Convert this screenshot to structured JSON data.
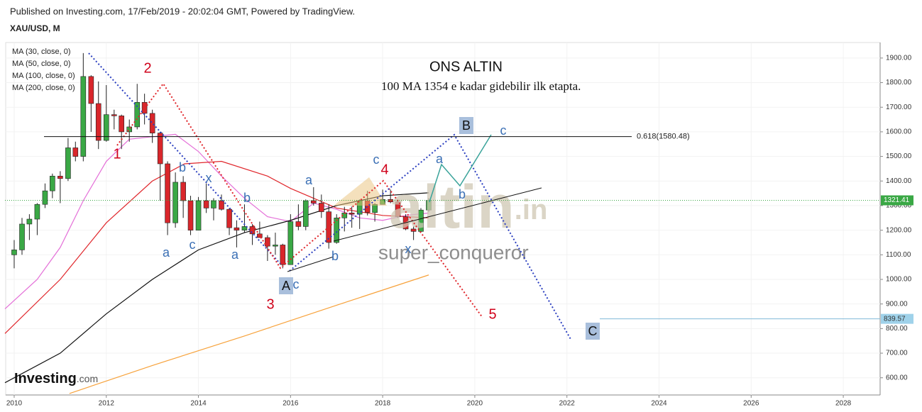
{
  "header": {
    "published": "Published on Investing.com, 17/Feb/2019 - 20:02:04 GMT, Powered by TradingView.",
    "symbol": "XAU/USD, M",
    "brand": "Investing",
    "brand_suffix": ".com"
  },
  "chart_data": {
    "type": "candlestick",
    "title": "ONS ALTIN",
    "subtitle": "100 MA 1354 e kadar gidebilir ilk etapta.",
    "watermark": "altin",
    "watermark_suffix": ".in",
    "author": "super_conqueror",
    "up_color": "#3aa845",
    "down_color": "#d9262b",
    "x": [
      2010.0,
      2010.17,
      2010.33,
      2010.5,
      2010.67,
      2010.83,
      2011.0,
      2011.17,
      2011.33,
      2011.5,
      2011.67,
      2011.83,
      2012.0,
      2012.17,
      2012.33,
      2012.5,
      2012.67,
      2012.83,
      2013.0,
      2013.17,
      2013.33,
      2013.5,
      2013.67,
      2013.83,
      2014.0,
      2014.17,
      2014.33,
      2014.5,
      2014.67,
      2014.83,
      2015.0,
      2015.17,
      2015.33,
      2015.5,
      2015.67,
      2015.83,
      2016.0,
      2016.17,
      2016.33,
      2016.5,
      2016.67,
      2016.83,
      2017.0,
      2017.17,
      2017.33,
      2017.5,
      2017.67,
      2017.83,
      2018.0,
      2018.17,
      2018.33,
      2018.5,
      2018.67,
      2018.83,
      2019.0
    ],
    "open": [
      1100,
      1120,
      1225,
      1245,
      1305,
      1360,
      1420,
      1410,
      1535,
      1500,
      1825,
      1715,
      1565,
      1670,
      1665,
      1600,
      1620,
      1720,
      1675,
      1595,
      1470,
      1230,
      1395,
      1320,
      1200,
      1320,
      1290,
      1320,
      1285,
      1210,
      1200,
      1215,
      1185,
      1170,
      1135,
      1140,
      1060,
      1235,
      1215,
      1320,
      1310,
      1275,
      1150,
      1250,
      1270,
      1265,
      1320,
      1272,
      1305,
      1325,
      1315,
      1255,
      1205,
      1195,
      1282
    ],
    "high": [
      1160,
      1250,
      1265,
      1310,
      1390,
      1430,
      1440,
      1575,
      1560,
      1920,
      1830,
      1805,
      1790,
      1690,
      1670,
      1650,
      1795,
      1755,
      1690,
      1600,
      1480,
      1435,
      1420,
      1340,
      1335,
      1390,
      1330,
      1345,
      1290,
      1240,
      1305,
      1225,
      1235,
      1180,
      1190,
      1145,
      1265,
      1305,
      1325,
      1375,
      1345,
      1305,
      1265,
      1295,
      1296,
      1325,
      1360,
      1310,
      1365,
      1365,
      1320,
      1265,
      1215,
      1290,
      1330
    ],
    "low": [
      1045,
      1100,
      1160,
      1180,
      1290,
      1330,
      1310,
      1400,
      1480,
      1480,
      1600,
      1530,
      1560,
      1610,
      1530,
      1560,
      1610,
      1630,
      1555,
      1320,
      1180,
      1210,
      1250,
      1180,
      1200,
      1270,
      1240,
      1280,
      1180,
      1130,
      1190,
      1140,
      1170,
      1075,
      1100,
      1045,
      1060,
      1200,
      1200,
      1300,
      1250,
      1125,
      1145,
      1195,
      1210,
      1205,
      1260,
      1235,
      1305,
      1310,
      1250,
      1200,
      1160,
      1190,
      1275
    ],
    "close": [
      1120,
      1225,
      1245,
      1305,
      1360,
      1420,
      1410,
      1535,
      1500,
      1825,
      1715,
      1565,
      1670,
      1665,
      1600,
      1620,
      1720,
      1675,
      1595,
      1470,
      1230,
      1395,
      1320,
      1200,
      1320,
      1290,
      1320,
      1285,
      1210,
      1200,
      1215,
      1185,
      1170,
      1135,
      1140,
      1060,
      1235,
      1215,
      1320,
      1310,
      1275,
      1150,
      1250,
      1270,
      1265,
      1320,
      1272,
      1305,
      1325,
      1315,
      1255,
      1205,
      1195,
      1282,
      1321.41
    ],
    "moving_averages": [
      {
        "name": "MA (30, close, 0)",
        "color": "#e46fd8",
        "x": [
          2009.8,
          2010.5,
          2011,
          2011.5,
          2012,
          2012.5,
          2013,
          2013.5,
          2014,
          2014.5,
          2015,
          2015.5,
          2016,
          2016.5,
          2017,
          2017.5,
          2018,
          2018.5,
          2019
        ],
        "values": [
          880,
          1000,
          1130,
          1320,
          1480,
          1570,
          1580,
          1590,
          1520,
          1420,
          1330,
          1255,
          1235,
          1310,
          1285,
          1250,
          1240,
          1260,
          1270
        ]
      },
      {
        "name": "MA (50, close, 0)",
        "color": "#e0262b",
        "x": [
          2009.8,
          2011,
          2012,
          2013,
          2013.7,
          2014.5,
          2015.5,
          2016,
          2016.5,
          2017,
          2018,
          2019
        ],
        "values": [
          780,
          1000,
          1230,
          1400,
          1470,
          1480,
          1420,
          1370,
          1330,
          1290,
          1260,
          1250
        ]
      },
      {
        "name": "MA (100, close, 0)",
        "color": "#111111",
        "x": [
          2009.8,
          2011,
          2012,
          2013,
          2014,
          2015,
          2016,
          2017,
          2018,
          2019
        ],
        "values": [
          580,
          700,
          860,
          1000,
          1120,
          1190,
          1240,
          1300,
          1340,
          1352
        ]
      },
      {
        "name": "MA (200, close, 0)",
        "color": "#f7a23b",
        "x": [
          2011.2,
          2013,
          2015,
          2017,
          2019
        ],
        "values": [
          536,
          650,
          770,
          895,
          1018
        ]
      }
    ],
    "levels": [
      {
        "label": "0.618(1580.48)",
        "value": 1580.48
      }
    ],
    "last_price": 1321.41,
    "target_price": 839.57,
    "wave_labels": [
      "2",
      "1",
      "3",
      "4",
      "5",
      "b",
      "x",
      "a",
      "c",
      "b",
      "a",
      "a",
      "c",
      "b",
      "c",
      "x",
      "a",
      "b",
      "c",
      "A",
      "B",
      "C"
    ],
    "xlim": [
      2009.8,
      2028.8
    ],
    "xticks": [
      2010,
      2012,
      2014,
      2016,
      2018,
      2020,
      2022,
      2024,
      2026,
      2028
    ],
    "ylim": [
      530,
      1963
    ],
    "yticks": [
      {
        "value": 600,
        "label": "600.00"
      },
      {
        "value": 700,
        "label": "700.00"
      },
      {
        "value": 800,
        "label": "800.00"
      },
      {
        "value": 900,
        "label": "900.00"
      },
      {
        "value": 1000,
        "label": "1000.00"
      },
      {
        "value": 1100,
        "label": "1100.00"
      },
      {
        "value": 1200,
        "label": "1200.00"
      },
      {
        "value": 1300,
        "label": "1300.00"
      },
      {
        "value": 1400,
        "label": "1400.00"
      },
      {
        "value": 1500,
        "label": "1500.00"
      },
      {
        "value": 1600,
        "label": "1600.00"
      },
      {
        "value": 1700,
        "label": "1700.00"
      },
      {
        "value": 1800,
        "label": "1800.00"
      },
      {
        "value": 1900,
        "label": "1900.00"
      }
    ],
    "grid": true
  }
}
